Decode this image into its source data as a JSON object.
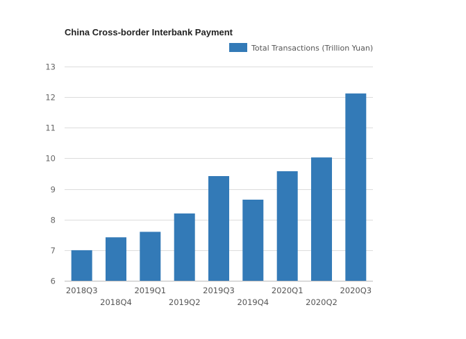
{
  "chart_data": {
    "type": "bar",
    "title": "China Cross-border Interbank Payment",
    "xlabel": "",
    "ylabel": "",
    "ylim": [
      6,
      13
    ],
    "yticks": [
      6,
      7,
      8,
      9,
      10,
      11,
      12,
      13
    ],
    "grid": true,
    "legend_position": "top-right",
    "categories": [
      "2018Q3",
      "2018Q4",
      "2019Q1",
      "2019Q2",
      "2019Q3",
      "2019Q4",
      "2020Q1",
      "2020Q2",
      "2020Q3"
    ],
    "series": [
      {
        "name": "Total Transactions (Trillion Yuan)",
        "color": "#337ab7",
        "values": [
          7.0,
          7.42,
          7.6,
          8.2,
          9.42,
          8.65,
          9.58,
          10.03,
          12.12
        ]
      }
    ]
  }
}
